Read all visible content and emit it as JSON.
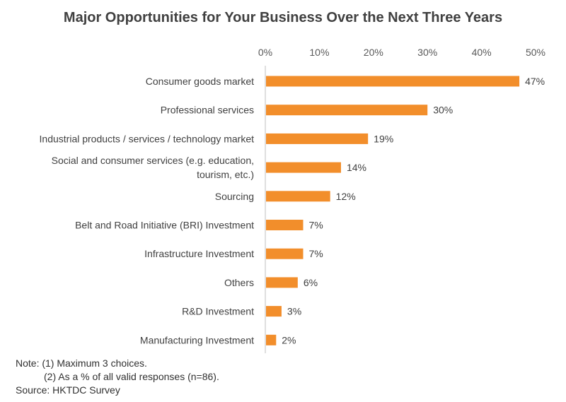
{
  "chart_data": {
    "type": "bar",
    "orientation": "horizontal",
    "title": "Major Opportunities for Your Business Over the Next Three Years",
    "xlabel": "",
    "ylabel": "",
    "xlim": [
      0,
      50
    ],
    "x_ticks": [
      "0%",
      "10%",
      "20%",
      "30%",
      "40%",
      "50%"
    ],
    "grid": false,
    "bar_color": "#F28E2B",
    "categories": [
      [
        "Consumer goods market"
      ],
      [
        "Professional services"
      ],
      [
        "Industrial products / services / technology market"
      ],
      [
        "Social and consumer services (e.g. education,",
        "tourism, etc.)"
      ],
      [
        "Sourcing"
      ],
      [
        "Belt and Road Initiative (BRI) Investment"
      ],
      [
        "Infrastructure Investment"
      ],
      [
        "Others"
      ],
      [
        "R&D Investment"
      ],
      [
        "Manufacturing Investment"
      ]
    ],
    "values": [
      47,
      30,
      19,
      14,
      12,
      7,
      7,
      6,
      3,
      2
    ],
    "value_labels": [
      "47%",
      "30%",
      "19%",
      "14%",
      "12%",
      "7%",
      "7%",
      "6%",
      "3%",
      "2%"
    ]
  },
  "notes": {
    "line1": "Note: (1) Maximum 3 choices.",
    "line2": "(2) As a % of all valid responses (n=86).",
    "source": "Source:  HKTDC Survey"
  }
}
